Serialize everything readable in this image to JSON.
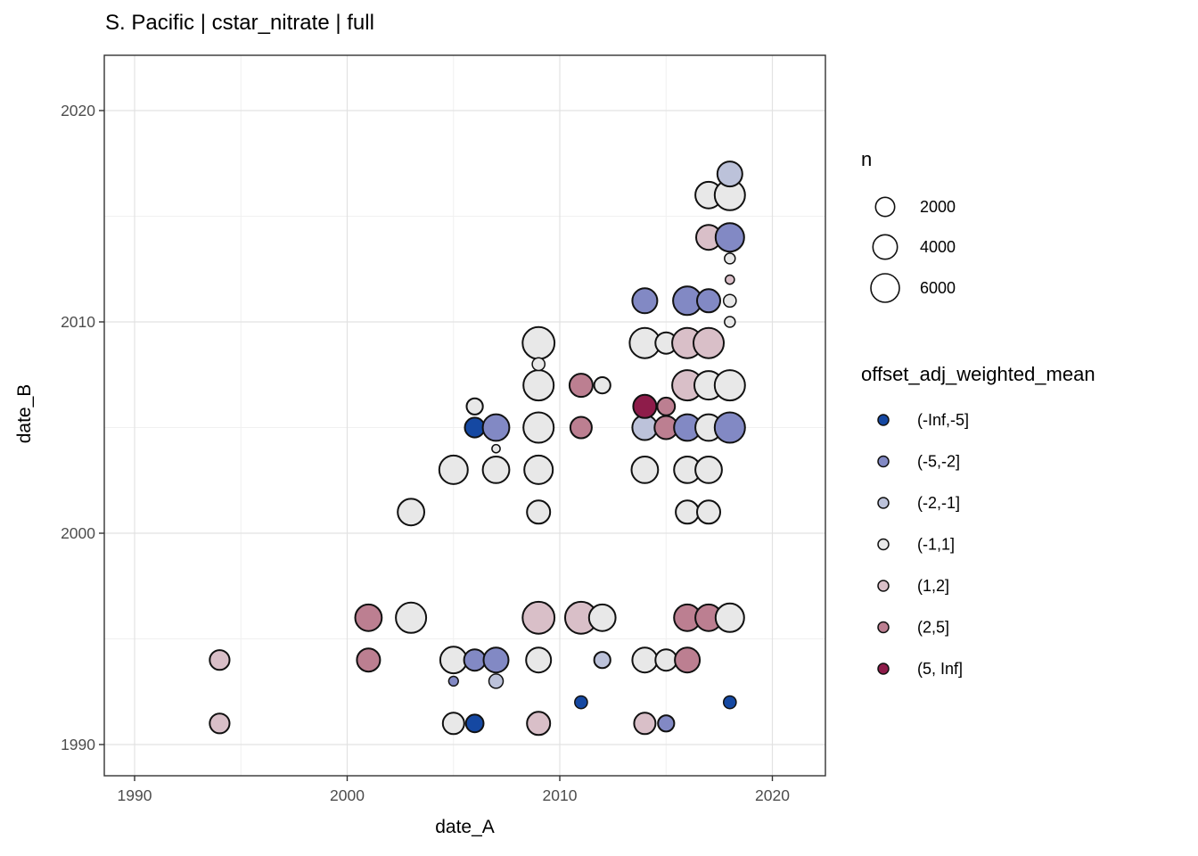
{
  "chart_data": {
    "type": "scatter",
    "title": "S. Pacific | cstar_nitrate | full",
    "xlabel": "date_A",
    "ylabel": "date_B",
    "xlim": [
      1988.6,
      2022.5
    ],
    "ylim": [
      1988.5,
      2022.6
    ],
    "x_ticks": [
      1990,
      2000,
      2010,
      2020
    ],
    "y_ticks": [
      1990,
      2000,
      2010,
      2020
    ],
    "x_minor": [
      1995,
      2005,
      2015
    ],
    "y_minor": [
      1995,
      2005,
      2015
    ],
    "grid": true,
    "legend_position": "right",
    "size_legend": {
      "title": "n",
      "values": [
        2000,
        4000,
        6000
      ]
    },
    "color_legend": {
      "title": "offset_adj_weighted_mean",
      "bins": [
        {
          "label": "(-Inf,-5]",
          "color": "#1548a2"
        },
        {
          "label": "(-5,-2]",
          "color": "#8289c4"
        },
        {
          "label": "(-2,-1]",
          "color": "#bcc2da"
        },
        {
          "label": "(-1,1]",
          "color": "#e8e8e8"
        },
        {
          "label": "(1,2]",
          "color": "#d9bfc8"
        },
        {
          "label": "(2,5]",
          "color": "#bc7f91"
        },
        {
          "label": "(5, Inf]",
          "color": "#8e1c4a"
        }
      ]
    },
    "points": [
      {
        "x": 1994,
        "y": 1994,
        "bin": "(1,2]",
        "n": 2200
      },
      {
        "x": 1994,
        "y": 1991,
        "bin": "(1,2]",
        "n": 2200
      },
      {
        "x": 2001,
        "y": 1996,
        "bin": "(2,5]",
        "n": 5000
      },
      {
        "x": 2001,
        "y": 1994,
        "bin": "(2,5]",
        "n": 3500
      },
      {
        "x": 2003,
        "y": 2001,
        "bin": "(-1,1]",
        "n": 5000
      },
      {
        "x": 2003,
        "y": 1996,
        "bin": "(-1,1]",
        "n": 7000
      },
      {
        "x": 2005,
        "y": 2003,
        "bin": "(-1,1]",
        "n": 6000
      },
      {
        "x": 2005,
        "y": 1994,
        "bin": "(-1,1]",
        "n": 5000
      },
      {
        "x": 2005,
        "y": 1993,
        "bin": "(-5,-2]",
        "n": 150
      },
      {
        "x": 2005,
        "y": 1991,
        "bin": "(-1,1]",
        "n": 2800
      },
      {
        "x": 2006,
        "y": 2006,
        "bin": "(-1,1]",
        "n": 1200
      },
      {
        "x": 2006,
        "y": 2005,
        "bin": "(-Inf,-5]",
        "n": 2200
      },
      {
        "x": 2006,
        "y": 1994,
        "bin": "(-5,-2]",
        "n": 2800
      },
      {
        "x": 2006,
        "y": 1991,
        "bin": "(-Inf,-5]",
        "n": 1600
      },
      {
        "x": 2007,
        "y": 2005,
        "bin": "(-5,-2]",
        "n": 5000
      },
      {
        "x": 2007,
        "y": 2004,
        "bin": "(-1,1]",
        "n": 50
      },
      {
        "x": 2007,
        "y": 2003,
        "bin": "(-1,1]",
        "n": 5000
      },
      {
        "x": 2007,
        "y": 1994,
        "bin": "(-5,-2]",
        "n": 4200
      },
      {
        "x": 2007,
        "y": 1993,
        "bin": "(-2,-1]",
        "n": 800
      },
      {
        "x": 2009,
        "y": 2009,
        "bin": "(-1,1]",
        "n": 8000
      },
      {
        "x": 2009,
        "y": 2008,
        "bin": "(-1,1]",
        "n": 500
      },
      {
        "x": 2009,
        "y": 2007,
        "bin": "(-1,1]",
        "n": 7000
      },
      {
        "x": 2009,
        "y": 2005,
        "bin": "(-1,1]",
        "n": 7000
      },
      {
        "x": 2009,
        "y": 2003,
        "bin": "(-1,1]",
        "n": 6000
      },
      {
        "x": 2009,
        "y": 2001,
        "bin": "(-1,1]",
        "n": 3500
      },
      {
        "x": 2009,
        "y": 1996,
        "bin": "(1,2]",
        "n": 8000
      },
      {
        "x": 2009,
        "y": 1994,
        "bin": "(-1,1]",
        "n": 4200
      },
      {
        "x": 2009,
        "y": 1991,
        "bin": "(1,2]",
        "n": 3500
      },
      {
        "x": 2011,
        "y": 2007,
        "bin": "(2,5]",
        "n": 3500
      },
      {
        "x": 2011,
        "y": 2005,
        "bin": "(2,5]",
        "n": 2800
      },
      {
        "x": 2011,
        "y": 1996,
        "bin": "(1,2]",
        "n": 8000
      },
      {
        "x": 2011,
        "y": 1992,
        "bin": "(-Inf,-5]",
        "n": 500
      },
      {
        "x": 2012,
        "y": 2007,
        "bin": "(-1,1]",
        "n": 1200
      },
      {
        "x": 2012,
        "y": 1996,
        "bin": "(-1,1]",
        "n": 5000
      },
      {
        "x": 2012,
        "y": 1994,
        "bin": "(-2,-1]",
        "n": 1200
      },
      {
        "x": 2014,
        "y": 2011,
        "bin": "(-5,-2]",
        "n": 4200
      },
      {
        "x": 2014,
        "y": 2009,
        "bin": "(-1,1]",
        "n": 7000
      },
      {
        "x": 2014,
        "y": 2006,
        "bin": "(5, Inf]",
        "n": 3500
      },
      {
        "x": 2014,
        "y": 2005,
        "bin": "(-2,-1]",
        "n": 4200
      },
      {
        "x": 2014,
        "y": 2003,
        "bin": "(-1,1]",
        "n": 5000
      },
      {
        "x": 2014,
        "y": 1994,
        "bin": "(-1,1]",
        "n": 4200
      },
      {
        "x": 2014,
        "y": 1991,
        "bin": "(1,2]",
        "n": 2800
      },
      {
        "x": 2015,
        "y": 2009,
        "bin": "(-1,1]",
        "n": 2800
      },
      {
        "x": 2015,
        "y": 2006,
        "bin": "(2,5]",
        "n": 1600
      },
      {
        "x": 2015,
        "y": 2005,
        "bin": "(2,5]",
        "n": 3500
      },
      {
        "x": 2015,
        "y": 1994,
        "bin": "(-1,1]",
        "n": 2800
      },
      {
        "x": 2015,
        "y": 1991,
        "bin": "(-5,-2]",
        "n": 1200
      },
      {
        "x": 2016,
        "y": 2011,
        "bin": "(-5,-2]",
        "n": 6000
      },
      {
        "x": 2016,
        "y": 2009,
        "bin": "(1,2]",
        "n": 7000
      },
      {
        "x": 2016,
        "y": 2007,
        "bin": "(1,2]",
        "n": 7000
      },
      {
        "x": 2016,
        "y": 2005,
        "bin": "(-5,-2]",
        "n": 5000
      },
      {
        "x": 2016,
        "y": 2003,
        "bin": "(-1,1]",
        "n": 5000
      },
      {
        "x": 2016,
        "y": 2001,
        "bin": "(-1,1]",
        "n": 3500
      },
      {
        "x": 2016,
        "y": 1996,
        "bin": "(2,5]",
        "n": 5000
      },
      {
        "x": 2016,
        "y": 1994,
        "bin": "(2,5]",
        "n": 4200
      },
      {
        "x": 2017,
        "y": 2016,
        "bin": "(-1,1]",
        "n": 5000
      },
      {
        "x": 2017,
        "y": 2014,
        "bin": "(1,2]",
        "n": 4200
      },
      {
        "x": 2017,
        "y": 2011,
        "bin": "(-5,-2]",
        "n": 3500
      },
      {
        "x": 2017,
        "y": 2009,
        "bin": "(1,2]",
        "n": 7000
      },
      {
        "x": 2017,
        "y": 2007,
        "bin": "(-1,1]",
        "n": 6000
      },
      {
        "x": 2017,
        "y": 2005,
        "bin": "(-1,1]",
        "n": 5000
      },
      {
        "x": 2017,
        "y": 2003,
        "bin": "(-1,1]",
        "n": 5000
      },
      {
        "x": 2017,
        "y": 2001,
        "bin": "(-1,1]",
        "n": 3500
      },
      {
        "x": 2017,
        "y": 1996,
        "bin": "(2,5]",
        "n": 5000
      },
      {
        "x": 2018,
        "y": 2017,
        "bin": "(-2,-1]",
        "n": 4200
      },
      {
        "x": 2018,
        "y": 2016,
        "bin": "(-1,1]",
        "n": 7000
      },
      {
        "x": 2018,
        "y": 2014,
        "bin": "(-5,-2]",
        "n": 6000
      },
      {
        "x": 2018,
        "y": 2013,
        "bin": "(-1,1]",
        "n": 250
      },
      {
        "x": 2018,
        "y": 2012,
        "bin": "(1,2]",
        "n": 100
      },
      {
        "x": 2018,
        "y": 2011,
        "bin": "(-1,1]",
        "n": 500
      },
      {
        "x": 2018,
        "y": 2010,
        "bin": "(-1,1]",
        "n": 250
      },
      {
        "x": 2018,
        "y": 2007,
        "bin": "(-1,1]",
        "n": 7000
      },
      {
        "x": 2018,
        "y": 2005,
        "bin": "(-5,-2]",
        "n": 7000
      },
      {
        "x": 2018,
        "y": 1996,
        "bin": "(-1,1]",
        "n": 6000
      },
      {
        "x": 2018,
        "y": 1992,
        "bin": "(-Inf,-5]",
        "n": 500
      }
    ],
    "style": {
      "panel_border": "#333333",
      "grid_major": "#e2e2e2",
      "grid_minor": "#f0f0f0",
      "tick_label_color": "#4d4d4d",
      "point_stroke": "#111111"
    }
  }
}
